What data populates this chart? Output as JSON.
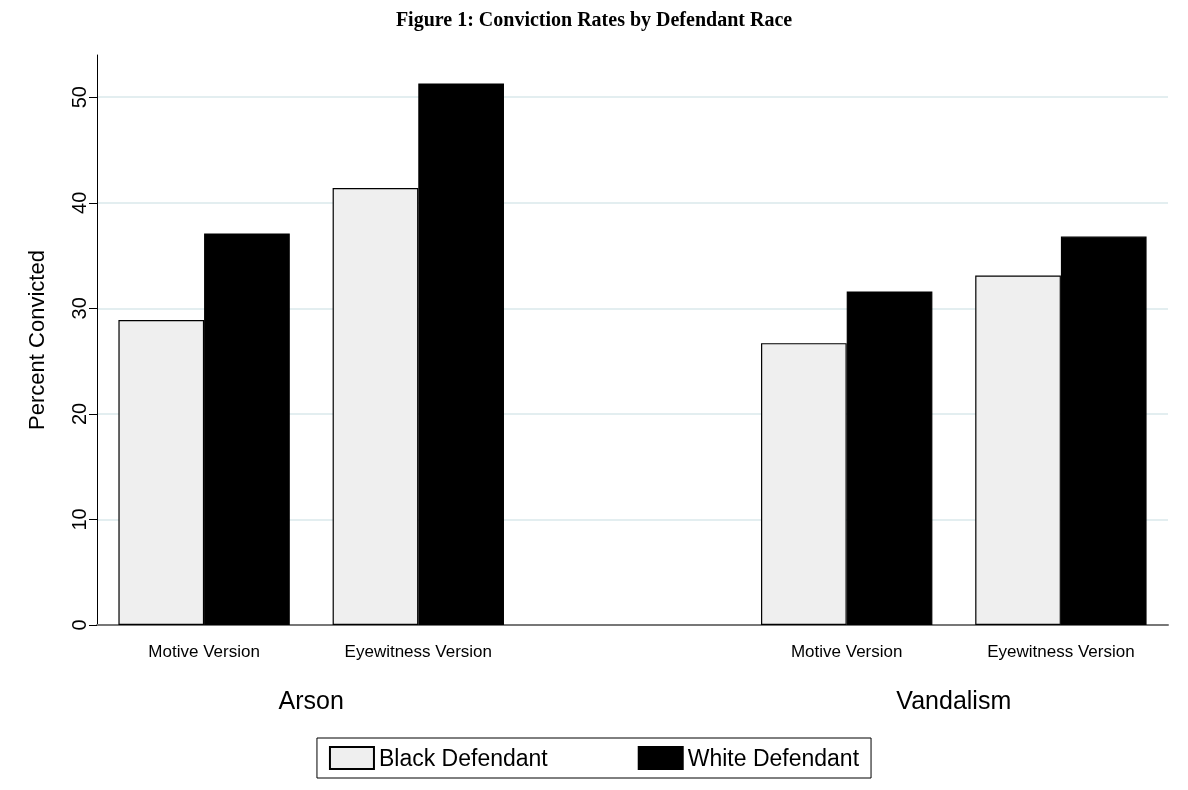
{
  "chart_data": {
    "type": "bar",
    "title": "Figure 1: Conviction Rates by Defendant Race",
    "ylabel": "Percent Convicted",
    "categories": [
      "Motive Version",
      "Eyewitness Version",
      null,
      "Motive Version",
      "Eyewitness Version"
    ],
    "series": [
      {
        "name": "Black Defendant",
        "color": "#efefef",
        "values": [
          28.9,
          41.4,
          null,
          26.7,
          33.1
        ]
      },
      {
        "name": "White Defendant",
        "color": "#000000",
        "values": [
          37.1,
          51.3,
          null,
          31.6,
          36.8
        ]
      }
    ],
    "annotations": [
      "Arson",
      "Vandalism"
    ],
    "ylim": [
      0,
      54
    ],
    "yticks": [
      0,
      10,
      20,
      30,
      40,
      50
    ],
    "grid": "y",
    "legend": "bottom"
  }
}
